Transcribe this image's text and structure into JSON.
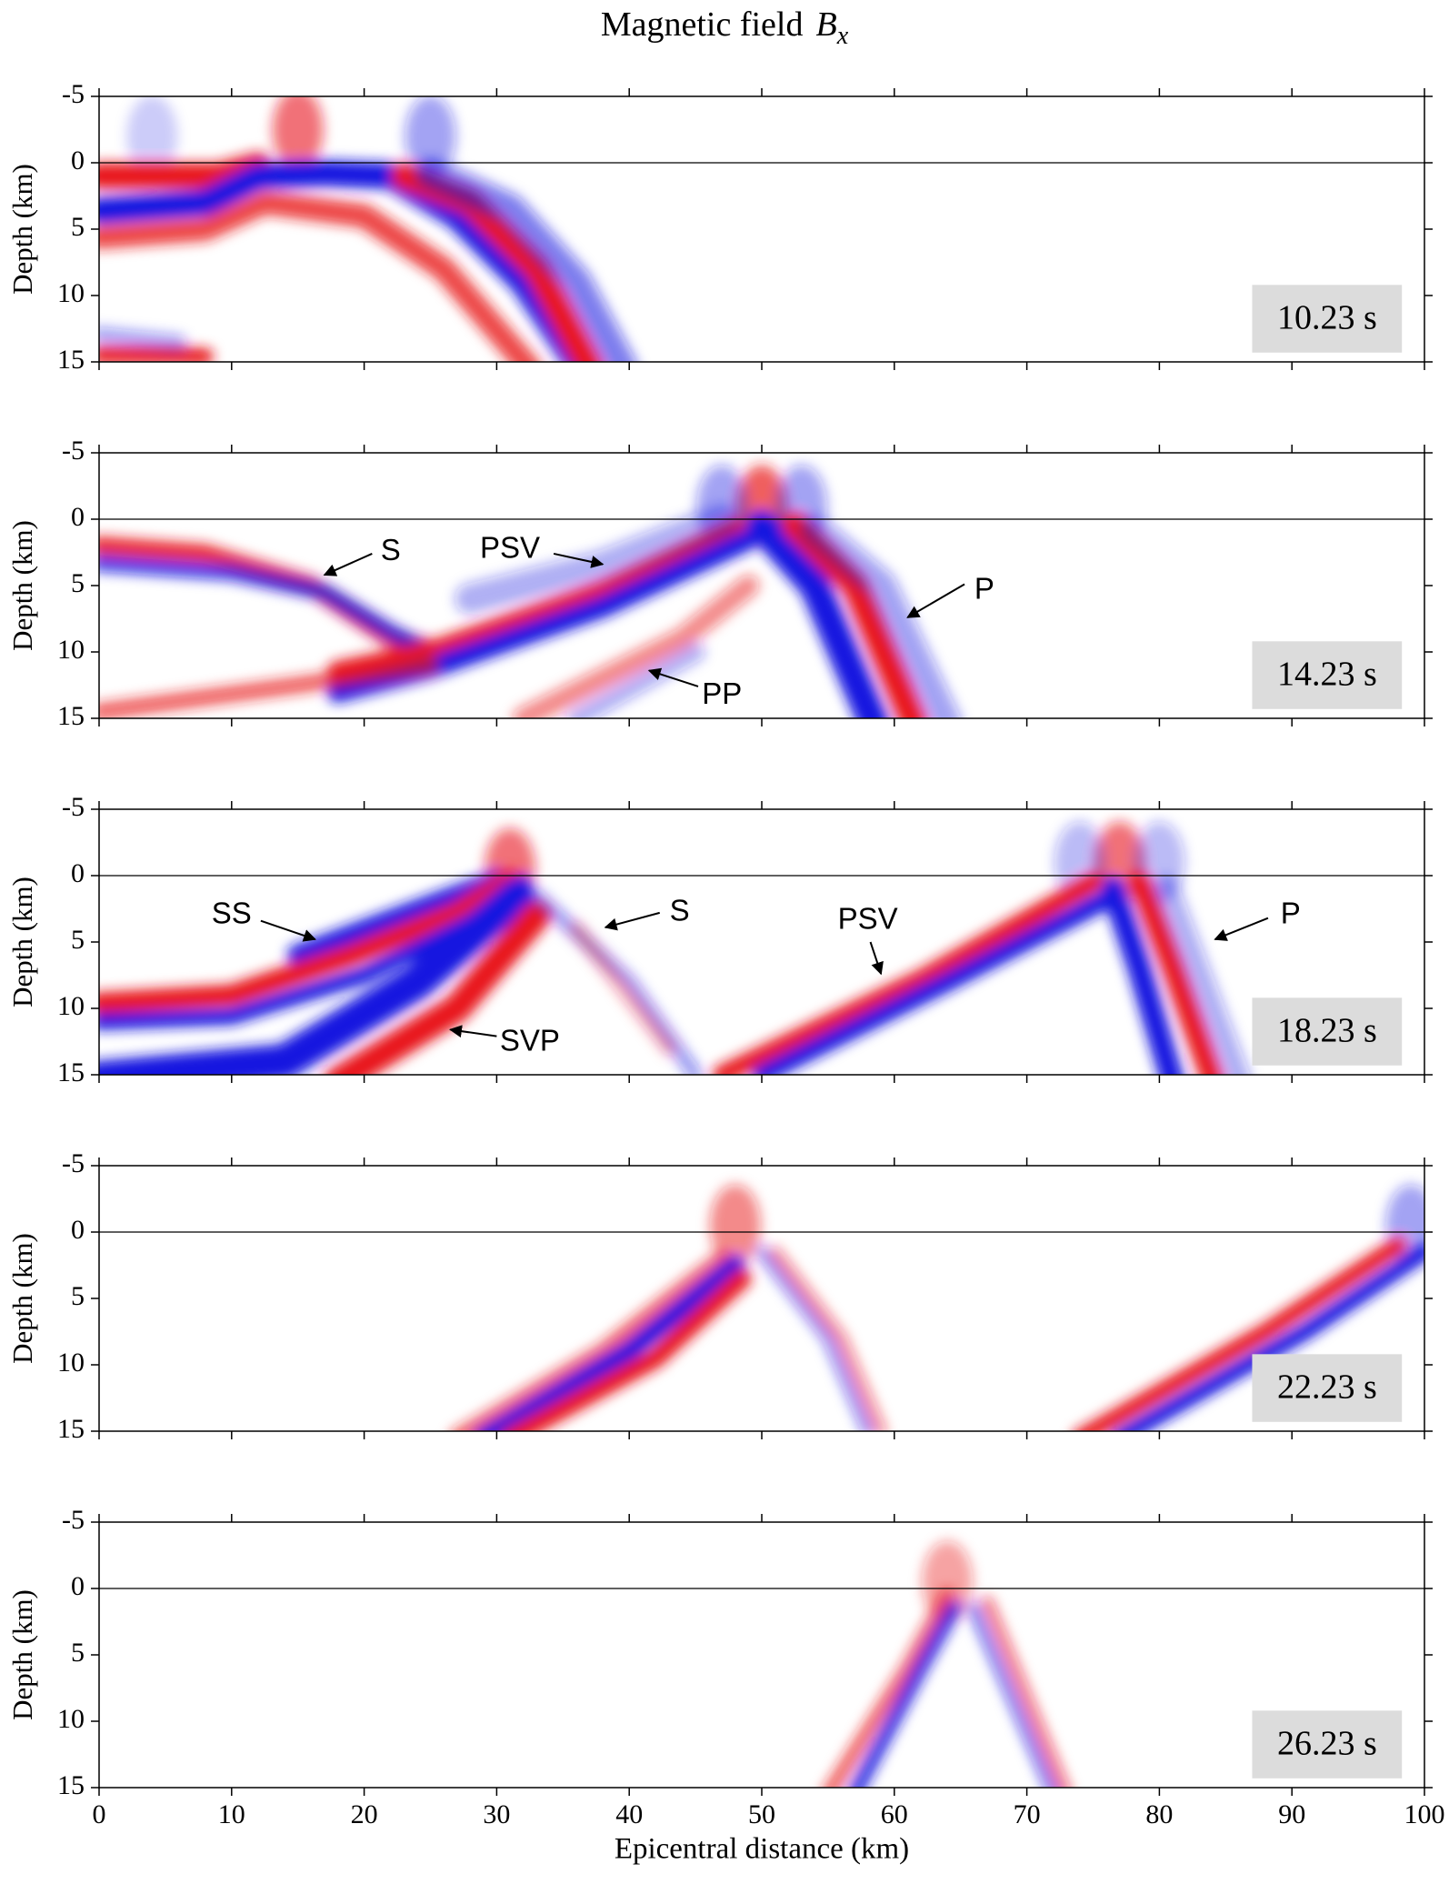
{
  "figure": {
    "title": "Magnetic field",
    "title_symbol": "B",
    "title_subscript": "x"
  },
  "chart_data": [
    {
      "type": "field",
      "time_label": "10.23 s",
      "ylabel": "Depth (km)",
      "y_inverted": true,
      "xlim": [
        0,
        100
      ],
      "xticks": [
        0,
        10,
        20,
        30,
        40,
        50,
        60,
        70,
        80,
        90,
        100
      ],
      "ylim": [
        -5,
        15
      ],
      "yticks": [
        -5,
        0,
        5,
        10,
        15
      ],
      "annotations": []
    },
    {
      "type": "field",
      "time_label": "14.23 s",
      "ylabel": "Depth (km)",
      "y_inverted": true,
      "xlim": [
        0,
        100
      ],
      "xticks": [
        0,
        10,
        20,
        30,
        40,
        50,
        60,
        70,
        80,
        90,
        100
      ],
      "ylim": [
        -5,
        15
      ],
      "yticks": [
        -5,
        0,
        5,
        10,
        15
      ],
      "annotations": [
        "S",
        "PSV",
        "P",
        "PP"
      ]
    },
    {
      "type": "field",
      "time_label": "18.23 s",
      "ylabel": "Depth (km)",
      "y_inverted": true,
      "xlim": [
        0,
        100
      ],
      "xticks": [
        0,
        10,
        20,
        30,
        40,
        50,
        60,
        70,
        80,
        90,
        100
      ],
      "ylim": [
        -5,
        15
      ],
      "yticks": [
        -5,
        0,
        5,
        10,
        15
      ],
      "annotations": [
        "SS",
        "S",
        "PSV",
        "P",
        "SVP"
      ]
    },
    {
      "type": "field",
      "time_label": "22.23 s",
      "ylabel": "Depth (km)",
      "y_inverted": true,
      "xlim": [
        0,
        100
      ],
      "xticks": [
        0,
        10,
        20,
        30,
        40,
        50,
        60,
        70,
        80,
        90,
        100
      ],
      "ylim": [
        -5,
        15
      ],
      "yticks": [
        -5,
        0,
        5,
        10,
        15
      ],
      "annotations": []
    },
    {
      "type": "field",
      "time_label": "26.23 s",
      "ylabel": "Depth (km)",
      "y_inverted": true,
      "xlabel": "Epicentral distance (km)",
      "xlim": [
        0,
        100
      ],
      "xticks": [
        0,
        10,
        20,
        30,
        40,
        50,
        60,
        70,
        80,
        90,
        100
      ],
      "ylim": [
        -5,
        15
      ],
      "yticks": [
        -5,
        0,
        5,
        10,
        15
      ],
      "annotations": []
    }
  ]
}
